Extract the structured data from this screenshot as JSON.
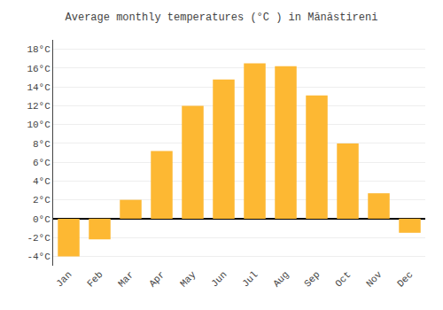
{
  "chart_data": {
    "type": "bar",
    "title": "Average monthly temperatures (°C ) in Mănăstireni",
    "categories": [
      "Jan",
      "Feb",
      "Mar",
      "Apr",
      "May",
      "Jun",
      "Jul",
      "Aug",
      "Sep",
      "Oct",
      "Nov",
      "Dec"
    ],
    "values": [
      -4.0,
      -2.2,
      2.0,
      7.2,
      12.0,
      14.8,
      16.5,
      16.2,
      13.1,
      8.0,
      2.7,
      -1.5
    ],
    "color": "#FDB833",
    "ylim": [
      -5,
      19
    ],
    "yticks": [
      {
        "value": -4,
        "label": "-4°C"
      },
      {
        "value": -2,
        "label": "-2°C"
      },
      {
        "value": 0,
        "label": "0°C"
      },
      {
        "value": 2,
        "label": "2°C"
      },
      {
        "value": 4,
        "label": "4°C"
      },
      {
        "value": 6,
        "label": "6°C"
      },
      {
        "value": 8,
        "label": "8°C"
      },
      {
        "value": 10,
        "label": "10°C"
      },
      {
        "value": 12,
        "label": "12°C"
      },
      {
        "value": 14,
        "label": "14°C"
      },
      {
        "value": 16,
        "label": "16°C"
      },
      {
        "value": 18,
        "label": "18°C"
      }
    ],
    "grid": true
  }
}
